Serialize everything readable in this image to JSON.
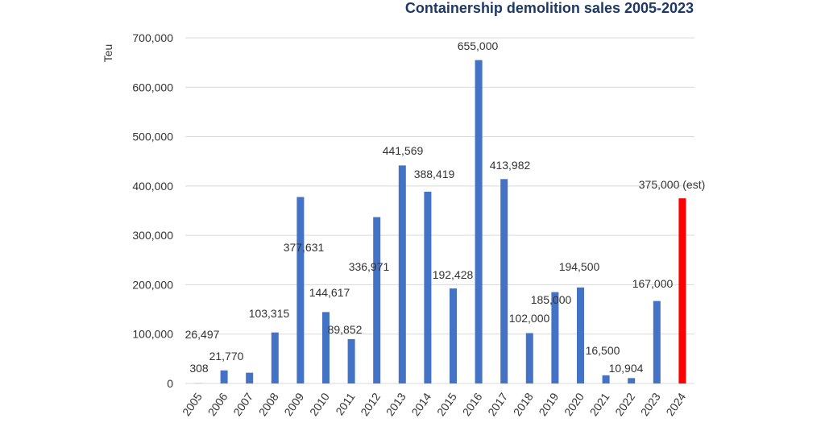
{
  "chart_data": {
    "type": "bar",
    "title": "Containership demolition sales 2005-2023",
    "xlabel": "",
    "ylabel": "Teu",
    "ylim": [
      0,
      700000
    ],
    "yticks": [
      "0",
      "100,000",
      "200,000",
      "300,000",
      "400,000",
      "500,000",
      "600,000",
      "700,000"
    ],
    "grid": true,
    "categories": [
      "2005",
      "2006",
      "2007",
      "2008",
      "2009",
      "2010",
      "2011",
      "2012",
      "2013",
      "2014",
      "2015",
      "2016",
      "2017",
      "2018",
      "2019",
      "2020",
      "2021",
      "2022",
      "2023",
      "2024"
    ],
    "values": [
      308,
      26497,
      21770,
      103315,
      377631,
      144617,
      89852,
      336971,
      441569,
      388419,
      192428,
      655000,
      413982,
      102000,
      185000,
      194500,
      16500,
      10904,
      167000,
      375000
    ],
    "data_labels": [
      "308",
      "26,497",
      "21,770",
      "103,315",
      "377,631",
      "144,617",
      "89,852",
      "336,971",
      "441,569",
      "388,419",
      "192,428",
      "655,000",
      "413,982",
      "102,000",
      "185,000",
      "194,500",
      "16,500",
      "10,904",
      "167,000",
      "375,000 (est)"
    ],
    "colors": {
      "bar": "#4472c4",
      "estimate": "#ff0000",
      "grid": "#d9d9d9"
    },
    "estimate_category": "2024"
  }
}
